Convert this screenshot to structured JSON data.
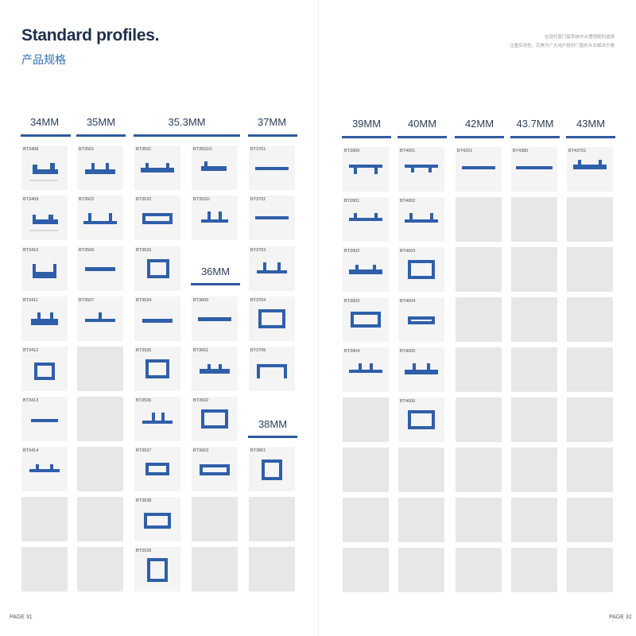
{
  "header": {
    "title": "Standard profiles.",
    "subtitle": "产品规格",
    "note_line1": "在现代窗门窗系统中合理搭配的选择",
    "note_line2": "注重实用性，完美为广大用户提供门窗的专业解决方案"
  },
  "sizes": [
    "34MM",
    "35MM",
    "35.3MM",
    "37MM",
    "36MM",
    "38MM",
    "39MM",
    "40MM",
    "42MM",
    "43.7MM",
    "43MM"
  ],
  "columns": {
    "c34": [
      "BT3408",
      "BT3409",
      "BT3410",
      "BT3411",
      "BT3412",
      "BT3413",
      "BT3414"
    ],
    "c35": [
      "BT3501",
      "BT3502",
      "BT3506",
      "BT3507"
    ],
    "c353a": [
      "BT3531",
      "BT3532",
      "BT3533",
      "BT3534",
      "BT3535",
      "BT3536",
      "BT3537",
      "BT3538",
      "BT3539"
    ],
    "c353b": [
      "BT3531O",
      "BT3531I",
      "BT3600",
      "BT3601",
      "BT3602",
      "BT3603"
    ],
    "c37": [
      "BT3701",
      "BT3702",
      "BT3703",
      "BT3704",
      "BT3705",
      "BT3801"
    ],
    "c39": [
      "BT3900",
      "BT3901",
      "BT3902",
      "BT3903",
      "BT3904"
    ],
    "c40": [
      "BT4001",
      "BT4002",
      "BT4003",
      "BT4004",
      "BT4005",
      "BT4006"
    ],
    "c42": [
      "BT4201"
    ],
    "c437": [
      "BT4380"
    ],
    "c43": [
      "BT43701"
    ]
  },
  "footer": {
    "left": "PAGE 31",
    "right": "PAGE 32"
  },
  "colors": {
    "profile": "#2f5fa8",
    "heading_bar": "#2f5a9e",
    "title": "#1f2f4b",
    "subtitle": "#2f6db2"
  }
}
